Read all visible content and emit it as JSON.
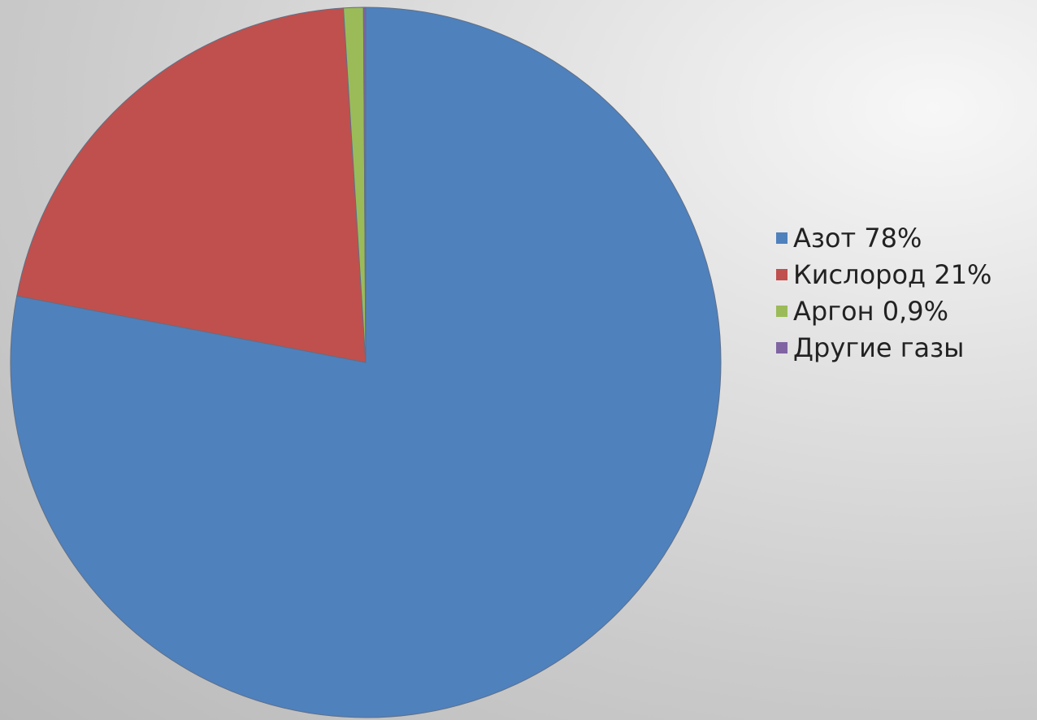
{
  "chart_data": {
    "type": "pie",
    "categories": [
      "Азот 78%",
      "Кислород 21%",
      "Аргон 0,9%",
      "Другие газы"
    ],
    "values": [
      78,
      21,
      0.9,
      0.1
    ],
    "colors": [
      "#4f81bd",
      "#c0504d",
      "#9bbb59",
      "#8064a2"
    ],
    "legend_position": "right",
    "start_angle_deg": 0,
    "direction": "clockwise",
    "title": ""
  }
}
